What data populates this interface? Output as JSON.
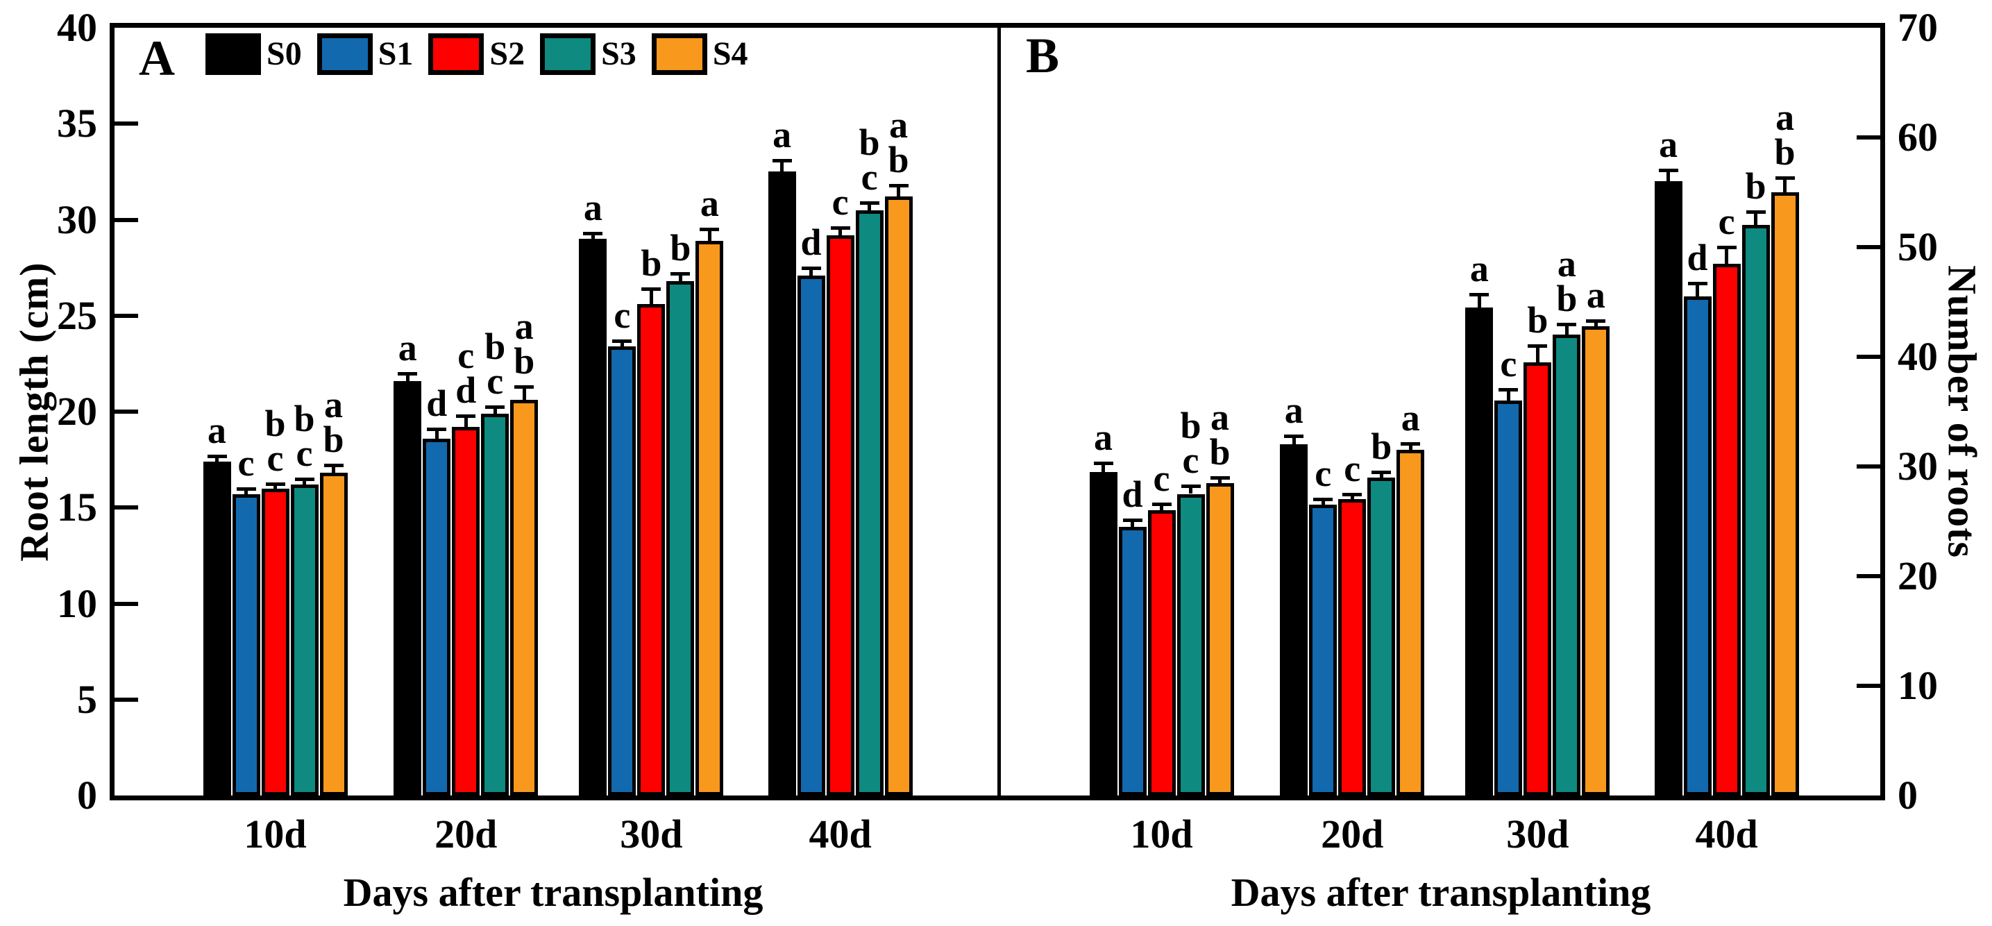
{
  "figure_title": "",
  "legend": [
    {
      "name": "S0",
      "color": "#000000"
    },
    {
      "name": "S1",
      "color": "#1269ae"
    },
    {
      "name": "S2",
      "color": "#fe0000"
    },
    {
      "name": "S3",
      "color": "#0e8a80"
    },
    {
      "name": "S4",
      "color": "#f8981d"
    }
  ],
  "chart_data": [
    {
      "type": "bar",
      "label": "A",
      "ylabel": "Root length (cm)",
      "yaxis_side": "left",
      "ylim": [
        0,
        40
      ],
      "ytick_step": 5,
      "xlabel": "Days after transplanting",
      "categories": [
        "10d",
        "20d",
        "30d",
        "40d"
      ],
      "legend_position": "top-left",
      "grid": false,
      "series": [
        {
          "name": "S0",
          "color": "#000000",
          "values": [
            17.4,
            21.6,
            29.0,
            32.5
          ],
          "errors": [
            0.3,
            0.4,
            0.3,
            0.6
          ],
          "letters": [
            "a",
            "a",
            "a",
            "a"
          ]
        },
        {
          "name": "S1",
          "color": "#1269ae",
          "values": [
            15.7,
            18.6,
            23.4,
            27.1
          ],
          "errors": [
            0.3,
            0.5,
            0.3,
            0.4
          ],
          "letters": [
            "c",
            "d",
            "c",
            "d"
          ]
        },
        {
          "name": "S2",
          "color": "#fe0000",
          "values": [
            16.0,
            19.2,
            25.6,
            29.2
          ],
          "errors": [
            0.25,
            0.6,
            0.8,
            0.4
          ],
          "letters": [
            "bc",
            "cd",
            "b",
            "c"
          ]
        },
        {
          "name": "S3",
          "color": "#0e8a80",
          "values": [
            16.2,
            19.9,
            26.8,
            30.5
          ],
          "errors": [
            0.3,
            0.35,
            0.4,
            0.4
          ],
          "letters": [
            "bc",
            "bc",
            "b",
            "bc"
          ]
        },
        {
          "name": "S4",
          "color": "#f8981d",
          "values": [
            16.8,
            20.6,
            28.9,
            31.2
          ],
          "errors": [
            0.4,
            0.7,
            0.6,
            0.6
          ],
          "letters": [
            "ab",
            "ab",
            "a",
            "ab"
          ]
        }
      ]
    },
    {
      "type": "bar",
      "label": "B",
      "ylabel": "Number of roots",
      "yaxis_side": "right",
      "ylim": [
        0,
        70
      ],
      "ytick_step": 10,
      "xlabel": "Days after transplanting",
      "categories": [
        "10d",
        "20d",
        "30d",
        "40d"
      ],
      "grid": false,
      "series": [
        {
          "name": "S0",
          "color": "#000000",
          "values": [
            29.5,
            32.0,
            44.5,
            56.0
          ],
          "errors": [
            0.8,
            0.8,
            1.2,
            1.0
          ],
          "letters": [
            "a",
            "a",
            "a",
            "a"
          ]
        },
        {
          "name": "S1",
          "color": "#1269ae",
          "values": [
            24.5,
            26.5,
            36.0,
            45.5
          ],
          "errors": [
            0.6,
            0.5,
            1.0,
            1.2
          ],
          "letters": [
            "d",
            "c",
            "c",
            "d"
          ]
        },
        {
          "name": "S2",
          "color": "#fe0000",
          "values": [
            26.0,
            27.0,
            39.5,
            48.5
          ],
          "errors": [
            0.6,
            0.5,
            1.5,
            1.5
          ],
          "letters": [
            "c",
            "c",
            "b",
            "c"
          ]
        },
        {
          "name": "S3",
          "color": "#0e8a80",
          "values": [
            27.5,
            29.0,
            42.0,
            52.0
          ],
          "errors": [
            0.7,
            0.5,
            1.0,
            1.2
          ],
          "letters": [
            "bc",
            "b",
            "ab",
            "b"
          ]
        },
        {
          "name": "S4",
          "color": "#f8981d",
          "values": [
            28.5,
            31.5,
            42.8,
            55.0
          ],
          "errors": [
            0.5,
            0.6,
            0.5,
            1.3
          ],
          "letters": [
            "ab",
            "a",
            "a",
            "ab"
          ]
        }
      ]
    }
  ]
}
